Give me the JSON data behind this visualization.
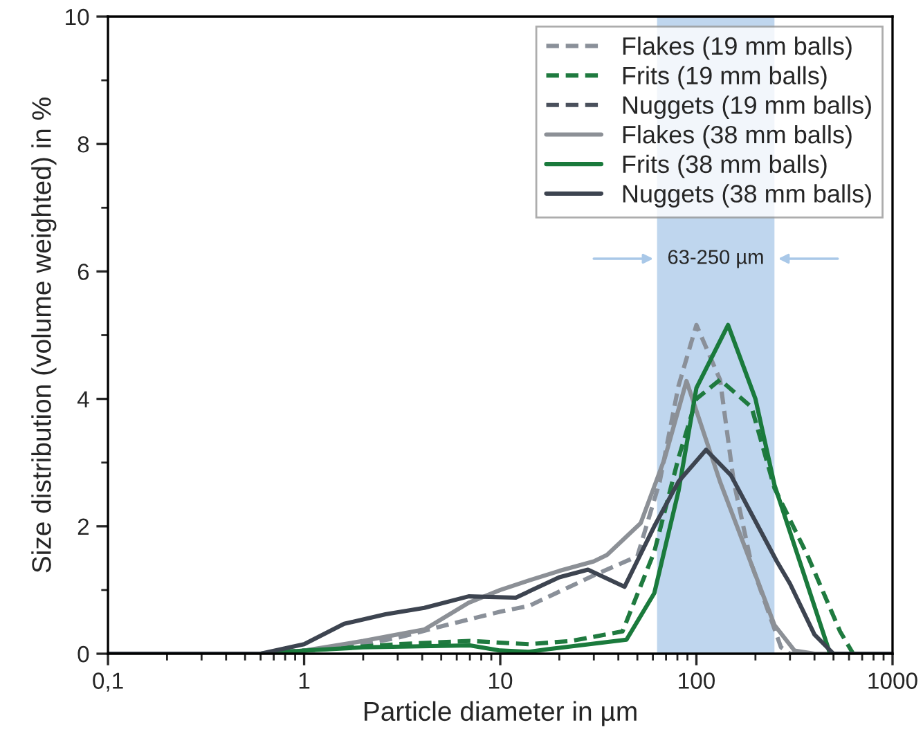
{
  "chart_data": {
    "type": "line",
    "xlabel": "Particle diameter in µm",
    "ylabel": "Size distribution (volume weighted) in %",
    "log": "x",
    "xlim": [
      0.1,
      1000
    ],
    "xticks": [
      {
        "value": 0.1,
        "label": "0,1"
      },
      1,
      10,
      100,
      1000
    ],
    "ylim": [
      0,
      10
    ],
    "yticks": [
      0,
      2,
      4,
      6,
      8,
      10
    ],
    "grid": false,
    "legend": "top right",
    "marker": "none",
    "bands": [
      {
        "axis": "x",
        "from": 63,
        "to": 250,
        "label": "63-250 µm",
        "color": "#a9c8e8"
      }
    ],
    "series": [
      {
        "name": "Flakes (19 mm balls)",
        "color": "#8a9099",
        "line_style": "dashed",
        "x": [
          0.1,
          0.6,
          1,
          2,
          3,
          5,
          10,
          14,
          30,
          50,
          65,
          81,
          100,
          132,
          155,
          191,
          270,
          300,
          1000
        ],
        "values": [
          0,
          0,
          0.05,
          0.15,
          0.25,
          0.43,
          0.66,
          0.75,
          1.23,
          1.53,
          2.7,
          4.2,
          5.16,
          4.3,
          2.7,
          1.4,
          0.1,
          0,
          0
        ]
      },
      {
        "name": "Frits (19 mm balls)",
        "color": "#1f7a3f",
        "line_style": "dashed",
        "x": [
          0.1,
          0.6,
          1,
          3,
          7,
          14,
          23,
          42,
          61,
          81,
          100,
          132,
          191,
          250,
          370,
          540,
          630,
          1000
        ],
        "values": [
          0,
          0,
          0.05,
          0.15,
          0.2,
          0.15,
          0.2,
          0.35,
          1.6,
          3.07,
          4.0,
          4.3,
          3.87,
          2.6,
          1.53,
          0.35,
          0,
          0
        ]
      },
      {
        "name": "Nuggets (19 mm balls)",
        "color": "#4a505c",
        "line_style": "dashed"
      },
      {
        "name": "Flakes (38 mm balls)",
        "color": "#8c9096",
        "line_style": "solid",
        "x": [
          0.1,
          0.6,
          1,
          2,
          4.1,
          6.9,
          10,
          14,
          20,
          30,
          35,
          52,
          69,
          89,
          132,
          191,
          250,
          316,
          400,
          1000
        ],
        "values": [
          0,
          0,
          0.05,
          0.2,
          0.38,
          0.8,
          1.0,
          1.15,
          1.3,
          1.45,
          1.55,
          2.05,
          3.07,
          4.28,
          2.7,
          1.4,
          0.45,
          0.05,
          0,
          0
        ]
      },
      {
        "name": "Frits (38 mm balls)",
        "color": "#1a7a3c",
        "line_style": "solid",
        "x": [
          0.1,
          0.6,
          1,
          2,
          7,
          10,
          14,
          17.5,
          44,
          61,
          81,
          100,
          145,
          200,
          250,
          355,
          480,
          1000
        ],
        "values": [
          0,
          0,
          0.05,
          0.1,
          0.13,
          0.05,
          0.03,
          0.07,
          0.22,
          0.95,
          2.55,
          4.17,
          5.16,
          4.0,
          2.65,
          1.23,
          0,
          0
        ]
      },
      {
        "name": "Nuggets (38 mm balls)",
        "color": "#3d4450",
        "line_style": "solid",
        "x": [
          0.1,
          0.6,
          1,
          1.6,
          2.6,
          4.1,
          6.9,
          12,
          20,
          28,
          43,
          61,
          81,
          112,
          150,
          257,
          300,
          400,
          500,
          1000
        ],
        "values": [
          0,
          0,
          0.15,
          0.47,
          0.62,
          0.72,
          0.9,
          0.88,
          1.2,
          1.32,
          1.05,
          2.0,
          2.7,
          3.2,
          2.8,
          1.45,
          1.1,
          0.3,
          0,
          0
        ]
      }
    ]
  }
}
